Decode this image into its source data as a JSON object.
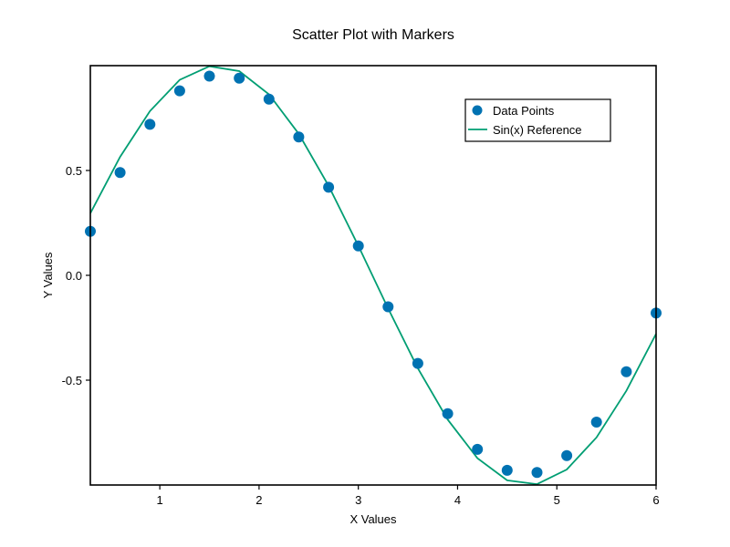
{
  "chart_data": {
    "type": "scatter",
    "title": "Scatter Plot with Markers",
    "xlabel": "X Values",
    "ylabel": "Y Values",
    "xlim": [
      0.3,
      6.0
    ],
    "ylim": [
      -1.0,
      1.0
    ],
    "grid": false,
    "legend_position": "upper right",
    "xticks": [
      1,
      2,
      3,
      4,
      5,
      6
    ],
    "xtick_labels": [
      "1",
      "2",
      "3",
      "4",
      "5",
      "6"
    ],
    "yticks": [
      0.5,
      0.0,
      -0.5
    ],
    "ytick_labels": [
      "0.5",
      "0.0",
      "-0.5"
    ],
    "series": [
      {
        "name": "Data Points",
        "kind": "scatter",
        "color": "#0072b2",
        "x": [
          0.3,
          0.6,
          0.9,
          1.2,
          1.5,
          1.8,
          2.1,
          2.4,
          2.7,
          3.0,
          3.3,
          3.6,
          3.9,
          4.2,
          4.5,
          4.8,
          5.1,
          5.4,
          5.7,
          6.0
        ],
        "y": [
          0.21,
          0.49,
          0.72,
          0.88,
          0.95,
          0.94,
          0.84,
          0.66,
          0.42,
          0.14,
          -0.15,
          -0.42,
          -0.66,
          -0.83,
          -0.93,
          -0.94,
          -0.86,
          -0.7,
          -0.46,
          -0.18
        ]
      },
      {
        "name": "Sin(x) Reference",
        "kind": "line",
        "color": "#009e73",
        "x": [
          0.3,
          0.6,
          0.9,
          1.2,
          1.5,
          1.8,
          2.1,
          2.4,
          2.7,
          3.0,
          3.3,
          3.6,
          3.9,
          4.2,
          4.5,
          4.8,
          5.1,
          5.4,
          5.7,
          6.0
        ],
        "y": [
          0.296,
          0.565,
          0.783,
          0.932,
          0.997,
          0.974,
          0.863,
          0.675,
          0.427,
          0.141,
          -0.158,
          -0.443,
          -0.688,
          -0.872,
          -0.978,
          -0.996,
          -0.926,
          -0.773,
          -0.551,
          -0.279
        ]
      }
    ]
  }
}
